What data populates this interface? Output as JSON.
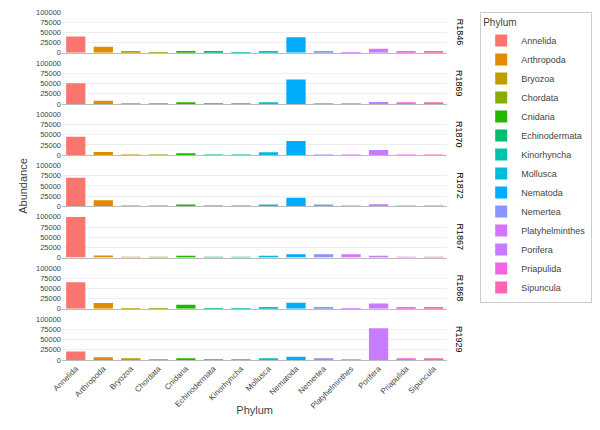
{
  "chart_data": [
    {
      "type": "bar",
      "title": "R1846",
      "legend": "right",
      "legend_title": "Phylum",
      "categories": [
        "Annelida",
        "Arthropoda",
        "Bryozoa",
        "Chordata",
        "Cnidaria",
        "Echinodermata",
        "Kinorhyncha",
        "Mollusca",
        "Nematoda",
        "Nemertea",
        "Platyhelminthes",
        "Porifera",
        "Priapulida",
        "Sipuncula"
      ],
      "values": [
        40000,
        15000,
        2000,
        500,
        3000,
        2500,
        500,
        4000,
        38000,
        2000,
        500,
        10000,
        2000,
        2000
      ],
      "colors": [
        "#F8766D",
        "#E08B00",
        "#BE9C00",
        "#8CAB00",
        "#24B700",
        "#00BE70",
        "#00C1AB",
        "#00BBDA",
        "#00ACFC",
        "#8B93FF",
        "#D575FE",
        "#C77CFF",
        "#F564E3",
        "#FF64B0"
      ],
      "ylim": [
        0,
        100000
      ],
      "yticks": [
        0,
        25000,
        50000,
        75000,
        100000
      ],
      "grid": true,
      "tick_labels": "y"
    },
    {
      "type": "bar",
      "title": "R1869",
      "categories": [
        "Annelida",
        "Arthropoda",
        "Bryozoa",
        "Chordata",
        "Cnidaria",
        "Echinodermata",
        "Kinorhyncha",
        "Mollusca",
        "Nematoda",
        "Nemertea",
        "Platyhelminthes",
        "Porifera",
        "Priapulida",
        "Sipuncula"
      ],
      "values": [
        51000,
        8000,
        500,
        300,
        2000,
        1000,
        300,
        2000,
        60000,
        1000,
        300,
        5000,
        2000,
        2500
      ],
      "colors": [
        "#F8766D",
        "#E08B00",
        "#BE9C00",
        "#8CAB00",
        "#24B700",
        "#00BE70",
        "#00C1AB",
        "#00BBDA",
        "#00ACFC",
        "#8B93FF",
        "#D575FE",
        "#C77CFF",
        "#F564E3",
        "#FF64B0"
      ],
      "ylim": [
        0,
        100000
      ],
      "yticks": [
        0,
        25000,
        50000,
        75000,
        100000
      ],
      "grid": true,
      "tick_labels": "y"
    },
    {
      "type": "bar",
      "title": "R1870",
      "categories": [
        "Annelida",
        "Arthropoda",
        "Bryozoa",
        "Chordata",
        "Cnidaria",
        "Echinodermata",
        "Kinorhyncha",
        "Mollusca",
        "Nematoda",
        "Nemertea",
        "Platyhelminthes",
        "Porifera",
        "Priapulida",
        "Sipuncula"
      ],
      "values": [
        45000,
        8000,
        1000,
        300,
        5000,
        1500,
        300,
        7000,
        35000,
        1000,
        300,
        13000,
        1500,
        1500
      ],
      "colors": [
        "#F8766D",
        "#E08B00",
        "#BE9C00",
        "#8CAB00",
        "#24B700",
        "#00BE70",
        "#00C1AB",
        "#00BBDA",
        "#00ACFC",
        "#8B93FF",
        "#D575FE",
        "#C77CFF",
        "#F564E3",
        "#FF64B0"
      ],
      "ylim": [
        0,
        100000
      ],
      "yticks": [
        0,
        25000,
        50000,
        75000,
        100000
      ],
      "grid": true,
      "tick_labels": "y"
    },
    {
      "type": "bar",
      "title": "R1872",
      "ylabel": "Abundance",
      "categories": [
        "Annelida",
        "Arthropoda",
        "Bryozoa",
        "Chordata",
        "Cnidaria",
        "Echinodermata",
        "Kinorhyncha",
        "Mollusca",
        "Nematoda",
        "Nemertea",
        "Platyhelminthes",
        "Porifera",
        "Priapulida",
        "Sipuncula"
      ],
      "values": [
        70000,
        15000,
        1000,
        300,
        4000,
        1000,
        300,
        3000,
        21000,
        4000,
        300,
        5000,
        1000,
        1000
      ],
      "colors": [
        "#F8766D",
        "#E08B00",
        "#BE9C00",
        "#8CAB00",
        "#24B700",
        "#00BE70",
        "#00C1AB",
        "#00BBDA",
        "#00ACFC",
        "#8B93FF",
        "#D575FE",
        "#C77CFF",
        "#F564E3",
        "#FF64B0"
      ],
      "ylim": [
        0,
        100000
      ],
      "yticks": [
        0,
        25000,
        50000,
        75000,
        100000
      ],
      "grid": true,
      "tick_labels": "y"
    },
    {
      "type": "bar",
      "title": "R1867",
      "categories": [
        "Annelida",
        "Arthropoda",
        "Bryozoa",
        "Chordata",
        "Cnidaria",
        "Echinodermata",
        "Kinorhyncha",
        "Mollusca",
        "Nematoda",
        "Nemertea",
        "Platyhelminthes",
        "Porifera",
        "Priapulida",
        "Sipuncula"
      ],
      "values": [
        100000,
        5000,
        500,
        300,
        2500,
        1500,
        300,
        2500,
        8000,
        8000,
        8000,
        4000,
        1500,
        1000
      ],
      "colors": [
        "#F8766D",
        "#E08B00",
        "#BE9C00",
        "#8CAB00",
        "#24B700",
        "#00BE70",
        "#00C1AB",
        "#00BBDA",
        "#00ACFC",
        "#8B93FF",
        "#D575FE",
        "#C77CFF",
        "#F564E3",
        "#FF64B0"
      ],
      "ylim": [
        0,
        100000
      ],
      "yticks": [
        0,
        25000,
        50000,
        75000,
        100000
      ],
      "grid": true,
      "tick_labels": "y"
    },
    {
      "type": "bar",
      "title": "R1868",
      "categories": [
        "Annelida",
        "Arthropoda",
        "Bryozoa",
        "Chordata",
        "Cnidaria",
        "Echinodermata",
        "Kinorhyncha",
        "Mollusca",
        "Nematoda",
        "Nemertea",
        "Platyhelminthes",
        "Porifera",
        "Priapulida",
        "Sipuncula"
      ],
      "values": [
        65000,
        14000,
        1500,
        300,
        10000,
        1500,
        300,
        3000,
        15000,
        3000,
        300,
        13000,
        2000,
        2000
      ],
      "colors": [
        "#F8766D",
        "#E08B00",
        "#BE9C00",
        "#8CAB00",
        "#24B700",
        "#00BE70",
        "#00C1AB",
        "#00BBDA",
        "#00ACFC",
        "#8B93FF",
        "#D575FE",
        "#C77CFF",
        "#F564E3",
        "#FF64B0"
      ],
      "ylim": [
        0,
        100000
      ],
      "yticks": [
        0,
        25000,
        50000,
        75000,
        100000
      ],
      "grid": true,
      "tick_labels": "y"
    },
    {
      "type": "bar",
      "title": "R1929",
      "xlabel": "Phylum",
      "categories": [
        "Annelida",
        "Arthropoda",
        "Bryozoa",
        "Chordata",
        "Cnidaria",
        "Echinodermata",
        "Kinorhyncha",
        "Mollusca",
        "Nematoda",
        "Nemertea",
        "Platyhelminthes",
        "Porifera",
        "Priapulida",
        "Sipuncula"
      ],
      "values": [
        21000,
        7000,
        2000,
        500,
        2000,
        1000,
        300,
        2000,
        8000,
        3000,
        300,
        78000,
        2000,
        3000
      ],
      "colors": [
        "#F8766D",
        "#E08B00",
        "#BE9C00",
        "#8CAB00",
        "#24B700",
        "#00BE70",
        "#00C1AB",
        "#00BBDA",
        "#00ACFC",
        "#8B93FF",
        "#D575FE",
        "#C77CFF",
        "#F564E3",
        "#FF64B0"
      ],
      "ylim": [
        0,
        100000
      ],
      "yticks": [
        0,
        25000,
        50000,
        75000,
        100000
      ],
      "grid": true
    }
  ]
}
